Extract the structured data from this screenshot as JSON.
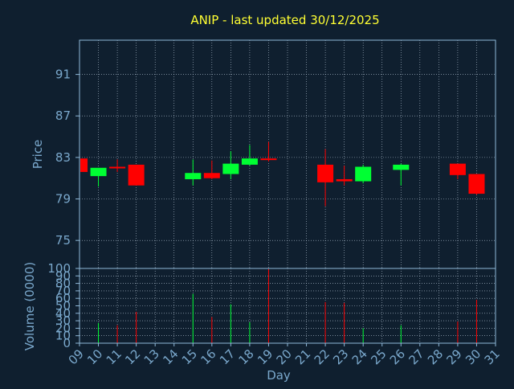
{
  "title": "ANIP - last updated 30/12/2025",
  "colors": {
    "background": "#0f1f2f",
    "axis": "#8fb8d8",
    "grid": "#b8c8d8",
    "title": "#ffff33",
    "label": "#7aa8cc",
    "up": "#00ff33",
    "down": "#ff0000"
  },
  "chart_data": [
    {
      "type": "candlestick",
      "ylabel": "Price",
      "ylim": [
        72.3,
        94.3
      ],
      "y_ticks": [
        75,
        79,
        83,
        87,
        91
      ],
      "grid": true,
      "candles": [
        {
          "day": 9,
          "open": 82.9,
          "high": 82.9,
          "low": 81.6,
          "close": 81.6
        },
        {
          "day": 10,
          "open": 81.2,
          "high": 82.0,
          "low": 80.2,
          "close": 82.0
        },
        {
          "day": 11,
          "open": 82.1,
          "high": 82.8,
          "low": 81.6,
          "close": 82.0
        },
        {
          "day": 12,
          "open": 82.3,
          "high": 82.3,
          "low": 80.3,
          "close": 80.3
        },
        {
          "day": 15,
          "open": 80.9,
          "high": 82.8,
          "low": 80.3,
          "close": 81.5
        },
        {
          "day": 16,
          "open": 81.5,
          "high": 82.7,
          "low": 80.9,
          "close": 81.0
        },
        {
          "day": 17,
          "open": 81.4,
          "high": 83.6,
          "low": 80.9,
          "close": 82.4
        },
        {
          "day": 18,
          "open": 82.3,
          "high": 84.2,
          "low": 82.2,
          "close": 82.9
        },
        {
          "day": 19,
          "open": 82.9,
          "high": 84.5,
          "low": 82.6,
          "close": 82.8
        },
        {
          "day": 22,
          "open": 82.3,
          "high": 83.8,
          "low": 78.3,
          "close": 80.6
        },
        {
          "day": 23,
          "open": 80.9,
          "high": 82.2,
          "low": 80.3,
          "close": 80.7
        },
        {
          "day": 24,
          "open": 80.7,
          "high": 82.3,
          "low": 80.5,
          "close": 82.1
        },
        {
          "day": 26,
          "open": 81.8,
          "high": 82.4,
          "low": 80.3,
          "close": 82.3
        },
        {
          "day": 29,
          "open": 82.4,
          "high": 82.4,
          "low": 80.9,
          "close": 81.3
        },
        {
          "day": 30,
          "open": 81.4,
          "high": 81.4,
          "low": 79.4,
          "close": 79.5
        }
      ]
    },
    {
      "type": "bar",
      "ylabel": "Volume (0000)",
      "ylim": [
        0,
        100
      ],
      "y_ticks": [
        0,
        10,
        20,
        30,
        40,
        50,
        60,
        70,
        80,
        90,
        100
      ],
      "x": [
        9,
        10,
        11,
        12,
        15,
        16,
        17,
        18,
        19,
        22,
        23,
        24,
        26,
        29,
        30
      ],
      "values": [
        0,
        27,
        24,
        42,
        66,
        35,
        52,
        28,
        99,
        55,
        54,
        20,
        24,
        29,
        58
      ],
      "xlabel": "Day",
      "x_ticks": [
        "09",
        "10",
        "11",
        "12",
        "13",
        "14",
        "15",
        "16",
        "17",
        "18",
        "19",
        "20",
        "21",
        "22",
        "23",
        "24",
        "25",
        "26",
        "27",
        "28",
        "29",
        "30",
        "31"
      ],
      "grid": true
    }
  ]
}
